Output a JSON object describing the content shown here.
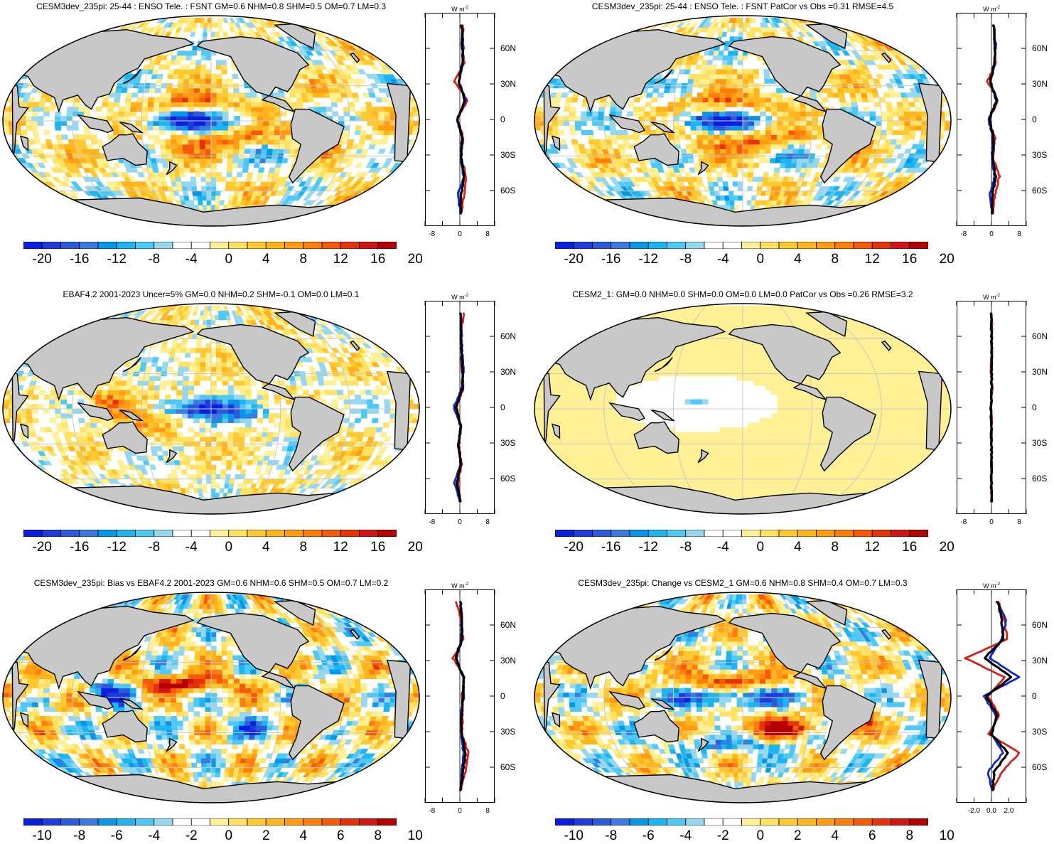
{
  "panels": [
    {
      "id": "p1",
      "title": "CESM3dev_235pi: 25-44 : ENSO Tele. : FSNT GM=0.6 NHM=0.8 SHM=0.5 OM=0.7 LM=0.3",
      "pattern": "model",
      "col": 0,
      "row": 0,
      "colorbar": {
        "labels": [
          "-20",
          "-16",
          "-12",
          "-8",
          "-4",
          "0",
          "4",
          "8",
          "12",
          "16",
          "20"
        ]
      },
      "zonal": {
        "units": "W m",
        "units_sup": "-2",
        "xticks": [
          "-8",
          "0",
          "8"
        ],
        "xlim": [
          -10,
          10
        ],
        "lat_ticks": [
          "60N",
          "30N",
          "0",
          "30S",
          "60S"
        ],
        "series": [
          {
            "color": "#d41f1f",
            "values": [
              1.0,
              0.6,
              1.3,
              -1.5,
              2.1,
              -0.7,
              1.0,
              0.4,
              1.8,
              1.2,
              0.3
            ]
          },
          {
            "color": "#1428c8",
            "values": [
              0.5,
              1.0,
              0.8,
              -0.3,
              1.7,
              -0.8,
              0.6,
              0.2,
              1.1,
              -0.6,
              0.2
            ]
          },
          {
            "color": "#000000",
            "values": [
              0.6,
              0.7,
              0.9,
              -0.4,
              1.5,
              -0.7,
              0.7,
              0.3,
              1.3,
              0.4,
              0.2
            ]
          }
        ]
      }
    },
    {
      "id": "p2",
      "title": "CESM3dev_235pi: 25-44 : ENSO Tele. : FSNT PatCor vs Obs =0.31 RMSE=4.5",
      "pattern": "model",
      "col": 1,
      "row": 0,
      "colorbar": {
        "labels": [
          "-20",
          "-16",
          "-12",
          "-8",
          "-4",
          "0",
          "4",
          "8",
          "12",
          "16",
          "20"
        ]
      },
      "zonal": {
        "units": "W m",
        "units_sup": "-2",
        "xticks": [
          "-8",
          "0",
          "8"
        ],
        "xlim": [
          -10,
          10
        ],
        "lat_ticks": [
          "60N",
          "30N",
          "0",
          "30S",
          "60S"
        ],
        "series": [
          {
            "color": "#d41f1f",
            "values": [
              0.8,
              1.0,
              1.3,
              -1.2,
              1.9,
              -0.6,
              1.0,
              0.4,
              2.3,
              1.0,
              0.3
            ]
          },
          {
            "color": "#1428c8",
            "values": [
              0.5,
              1.2,
              0.9,
              -0.3,
              1.6,
              -0.9,
              0.5,
              0.1,
              0.9,
              -0.5,
              0.2
            ]
          },
          {
            "color": "#000000",
            "values": [
              0.6,
              1.0,
              1.0,
              -0.4,
              1.5,
              -0.7,
              0.7,
              0.3,
              1.2,
              0.3,
              0.2
            ]
          }
        ]
      }
    },
    {
      "id": "p3",
      "title": "EBAF4.2 2001-2023 Uncer=5% GM=0.0 NHM=0.2 SHM=-0.1 OM=0.0 LM=0.1",
      "pattern": "obs",
      "col": 0,
      "row": 1,
      "colorbar": {
        "labels": [
          "-20",
          "-16",
          "-12",
          "-8",
          "-4",
          "0",
          "4",
          "8",
          "12",
          "16",
          "20"
        ]
      },
      "zonal": {
        "units": "W m",
        "units_sup": "-2",
        "xticks": [
          "-8",
          "0",
          "8"
        ],
        "xlim": [
          -10,
          10
        ],
        "lat_ticks": [
          "60N",
          "30N",
          "0",
          "30S",
          "60S"
        ],
        "series": [
          {
            "color": "#d41f1f",
            "values": [
              1.2,
              0.3,
              0.4,
              0.6,
              1.0,
              -1.0,
              0.3,
              -0.2,
              0.5,
              -0.6,
              0.1
            ]
          },
          {
            "color": "#1428c8",
            "values": [
              0.2,
              0.4,
              0.6,
              1.1,
              0.5,
              -1.8,
              0.3,
              -0.4,
              0.2,
              -1.5,
              0.1
            ]
          },
          {
            "color": "#000000",
            "values": [
              0.3,
              0.3,
              0.5,
              0.8,
              0.7,
              -1.1,
              0.3,
              -0.3,
              0.3,
              -0.8,
              0.1
            ]
          }
        ]
      }
    },
    {
      "id": "p4",
      "title": "CESM2_1: GM=0.0 NHM=0.0 SHM=0.0 OM=0.0 LM=0.0 PatCor vs Obs =0.26 RMSE=3.2",
      "pattern": "weak",
      "col": 1,
      "row": 1,
      "colorbar": {
        "labels": [
          "-20",
          "-16",
          "-12",
          "-8",
          "-4",
          "0",
          "4",
          "8",
          "12",
          "16",
          "20"
        ]
      },
      "zonal": {
        "units": "W m",
        "units_sup": "-2",
        "xticks": [
          "-8",
          "0",
          "8"
        ],
        "xlim": [
          -10,
          10
        ],
        "lat_ticks": [
          "60N",
          "30N",
          "0",
          "30S",
          "60S"
        ],
        "series": [
          {
            "color": "#d41f1f",
            "values": [
              0.1,
              0.0,
              0.1,
              -0.1,
              0.2,
              -0.1,
              0.1,
              0.0,
              0.1,
              0.0,
              0.0
            ]
          },
          {
            "color": "#1428c8",
            "values": [
              0.0,
              0.1,
              0.0,
              0.0,
              0.1,
              -0.2,
              0.0,
              0.0,
              0.0,
              0.0,
              0.0
            ]
          },
          {
            "color": "#000000",
            "values": [
              0.0,
              0.0,
              0.0,
              0.0,
              0.1,
              -0.1,
              0.0,
              0.0,
              0.0,
              0.0,
              0.0
            ]
          }
        ]
      }
    },
    {
      "id": "p5",
      "title": "CESM3dev_235pi: Bias vs EBAF4.2 2001-2023 GM=0.6 NHM=0.6 SHM=0.5 OM=0.7 LM=0.2",
      "pattern": "bias",
      "col": 0,
      "row": 2,
      "colorbar": {
        "labels": [
          "-10",
          "-8",
          "-6",
          "-4",
          "-2",
          "0",
          "2",
          "4",
          "6",
          "8",
          "10"
        ]
      },
      "zonal": {
        "units": "W m",
        "units_sup": "-2",
        "xticks": [
          "-8",
          "0",
          "8"
        ],
        "xlim": [
          -10,
          10
        ],
        "lat_ticks": [
          "60N",
          "30N",
          "0",
          "30S",
          "60S"
        ],
        "series": [
          {
            "color": "#d41f1f",
            "values": [
              -1.0,
              0.3,
              1.0,
              -2.0,
              1.4,
              0.6,
              0.8,
              0.6,
              2.5,
              1.5,
              0.2
            ]
          },
          {
            "color": "#1428c8",
            "values": [
              0.3,
              0.6,
              0.4,
              -1.0,
              0.9,
              1.2,
              0.3,
              0.4,
              1.0,
              0.6,
              0.1
            ]
          },
          {
            "color": "#000000",
            "values": [
              0.2,
              0.5,
              0.6,
              -1.2,
              1.0,
              1.0,
              0.5,
              0.5,
              1.6,
              0.9,
              0.1
            ]
          }
        ]
      }
    },
    {
      "id": "p6",
      "title": "CESM3dev_235pi: Change vs CESM2_1 GM=0.6 NHM=0.8 SHM=0.4 OM=0.7 LM=0.3",
      "pattern": "change",
      "col": 1,
      "row": 2,
      "colorbar": {
        "labels": [
          "-10",
          "-8",
          "-6",
          "-4",
          "-2",
          "0",
          "2",
          "4",
          "6",
          "8",
          "10"
        ]
      },
      "zonal": {
        "units": "W m",
        "units_sup": "-2",
        "xticks": [
          "-2.0",
          "0.0",
          "2.0"
        ],
        "xlim": [
          -4,
          4
        ],
        "lat_ticks": [
          "60N",
          "30N",
          "0",
          "30S",
          "60S"
        ],
        "series": [
          {
            "color": "#d41f1f",
            "values": [
              0.8,
              1.5,
              1.8,
              -3.0,
              1.5,
              -0.4,
              0.9,
              -0.3,
              3.2,
              1.2,
              0.1
            ]
          },
          {
            "color": "#1428c8",
            "values": [
              0.6,
              1.7,
              1.2,
              -0.2,
              3.2,
              -0.9,
              0.5,
              0.1,
              1.3,
              -0.4,
              0.1
            ]
          },
          {
            "color": "#000000",
            "values": [
              0.7,
              1.2,
              1.3,
              -0.8,
              2.3,
              -0.6,
              0.7,
              0.0,
              1.9,
              0.3,
              0.1
            ]
          }
        ]
      }
    }
  ],
  "colorbar_colors": [
    "#0a1ee0",
    "#1e3cdc",
    "#2d5ad8",
    "#3c7ae0",
    "#0a96e6",
    "#1eb4f0",
    "#50c8f5",
    "#96d7f0",
    "#ffffff",
    "#ffffff",
    "#fff096",
    "#ffe164",
    "#ffc832",
    "#ffb41e",
    "#ff9b14",
    "#ff7d0a",
    "#f55a0a",
    "#e6320a",
    "#d21414",
    "#b40000"
  ]
}
